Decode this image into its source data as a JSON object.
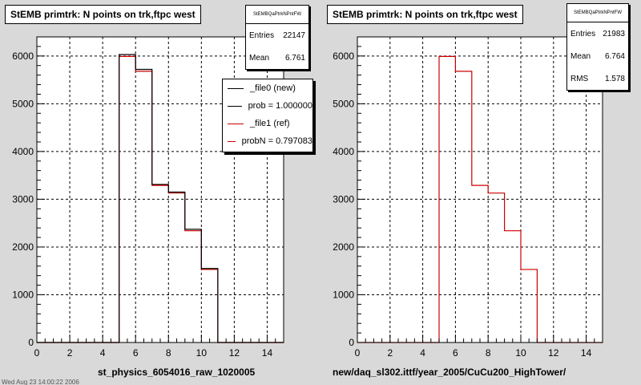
{
  "colors": {
    "new": "#000000",
    "ref": "#cc0000",
    "background": "#d9d9d9",
    "frame": "#ffffff"
  },
  "left": {
    "title": "StEMB primtrk: N points on trk,ftpc west",
    "stats": {
      "name": "StEMBQaPtrkNPntFW",
      "rows": [
        {
          "label": "Entries",
          "value": "22147"
        },
        {
          "label": "Mean",
          "value": "6.761"
        }
      ]
    },
    "legend": [
      {
        "label": "_file0 (new)",
        "color": "#000000"
      },
      {
        "label": "prob = 1.000000",
        "color": "#000000"
      },
      {
        "label": "_file1 (ref)",
        "color": "#cc0000"
      },
      {
        "label": "probN = 0.797083",
        "color": "#cc0000"
      }
    ],
    "xcaption": "st_physics_6054016_raw_1020005",
    "bottom_fragment": "Wed Aug 23 14:00:22 2006"
  },
  "right": {
    "title": "StEMB primtrk: N points on trk,ftpc west",
    "stats": {
      "name": "StEMBQaPtrkNPntFW",
      "rows": [
        {
          "label": "Entries",
          "value": "21983"
        },
        {
          "label": "Mean",
          "value": "6.764"
        },
        {
          "label": "RMS",
          "value": "1.578"
        }
      ]
    },
    "xcaption": "new/daq_sl302.ittf/year_2005/CuCu200_HighTower/"
  },
  "chart_data": [
    {
      "type": "bar",
      "title": "StEMB primtrk: N points on trk,ftpc west",
      "xlabel": "",
      "ylabel": "",
      "xlim": [
        0,
        15
      ],
      "ylim": [
        0,
        6400
      ],
      "xticks": [
        0,
        2,
        4,
        6,
        8,
        10,
        12,
        14
      ],
      "yticks": [
        0,
        1000,
        2000,
        3000,
        4000,
        5000,
        6000
      ],
      "grid": true,
      "legend_position": "top-right",
      "bin_edges": [
        0,
        1,
        2,
        3,
        4,
        5,
        6,
        7,
        8,
        9,
        10,
        11,
        12,
        13,
        14,
        15
      ],
      "series": [
        {
          "name": "_file0 (new)",
          "color": "#000000",
          "values": [
            0,
            0,
            0,
            0,
            0,
            6030,
            5720,
            3310,
            3150,
            2370,
            1550,
            0,
            0,
            0,
            0
          ]
        },
        {
          "name": "_file1 (ref)",
          "color": "#cc0000",
          "values": [
            0,
            0,
            0,
            0,
            0,
            5990,
            5680,
            3290,
            3130,
            2340,
            1530,
            0,
            0,
            0,
            0
          ]
        }
      ]
    },
    {
      "type": "bar",
      "title": "StEMB primtrk: N points on trk,ftpc west",
      "xlabel": "",
      "ylabel": "",
      "xlim": [
        0,
        15
      ],
      "ylim": [
        0,
        6400
      ],
      "xticks": [
        0,
        2,
        4,
        6,
        8,
        10,
        12,
        14
      ],
      "yticks": [
        0,
        1000,
        2000,
        3000,
        4000,
        5000,
        6000
      ],
      "grid": true,
      "bin_edges": [
        0,
        1,
        2,
        3,
        4,
        5,
        6,
        7,
        8,
        9,
        10,
        11,
        12,
        13,
        14,
        15
      ],
      "series": [
        {
          "color": "#cc0000",
          "values": [
            0,
            0,
            0,
            0,
            0,
            5990,
            5680,
            3290,
            3130,
            2340,
            1530,
            0,
            0,
            0,
            0
          ]
        }
      ]
    }
  ]
}
